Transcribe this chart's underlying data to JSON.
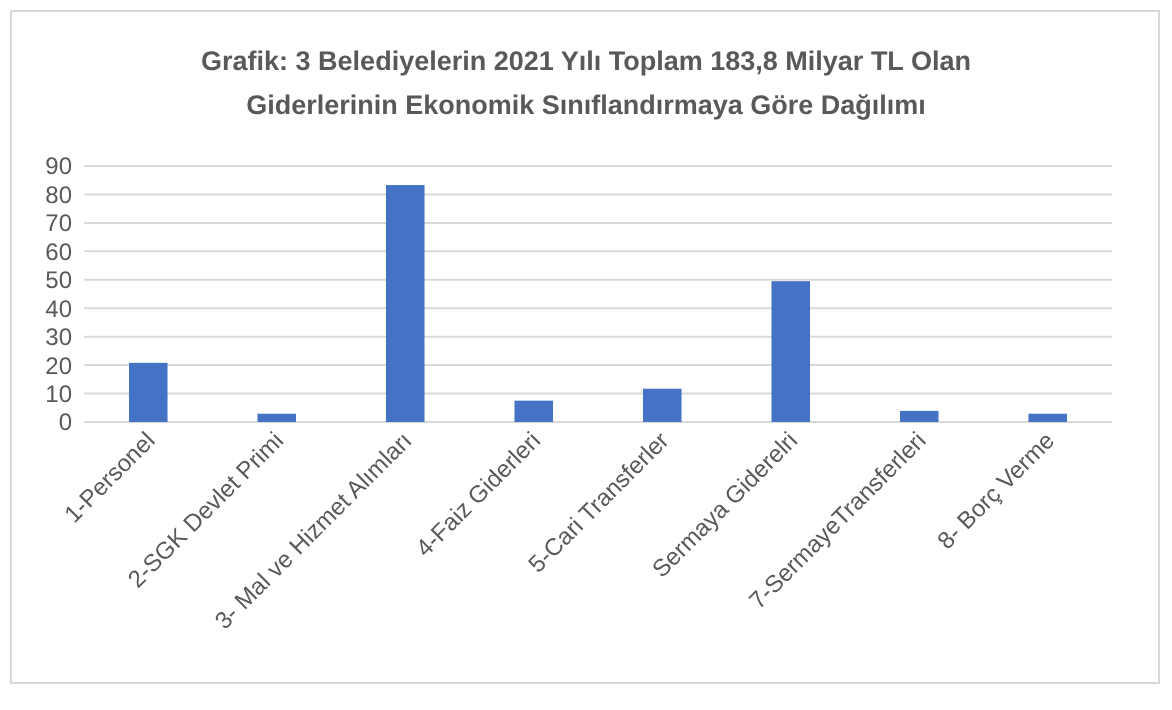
{
  "chart_data": {
    "type": "bar",
    "title": "Grafik: 3 Belediyelerin 2021 Yılı Toplam 183,8 Milyar TL Olan Giderlerinin Ekonomik Sınıflandırmaya Göre Dağılımı",
    "categories": [
      "1-Personel",
      "2-SGK Devlet Primi",
      "3- Mal ve Hizmet Alımları",
      "4-Faiz Giderleri",
      "5-Cari Transferler",
      "Sermaya Giderelri",
      "7-SermayeTransferleri",
      "8- Borç Verme"
    ],
    "values": [
      20.8,
      2.9,
      83.3,
      7.5,
      11.7,
      49.5,
      3.9,
      2.9
    ],
    "color": "#4472c4",
    "ylim": [
      0,
      90
    ],
    "yticks": [
      0,
      10,
      20,
      30,
      40,
      50,
      60,
      70,
      80,
      90
    ],
    "grid": "y"
  }
}
